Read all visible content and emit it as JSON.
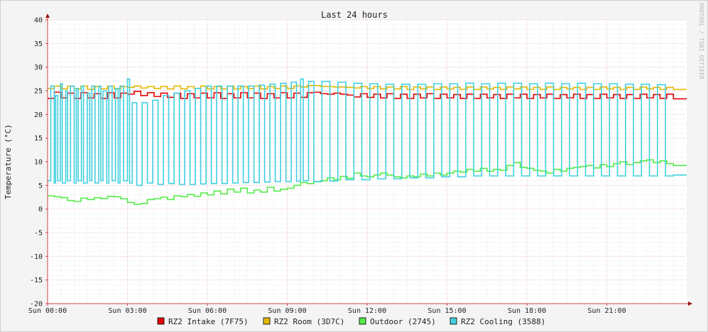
{
  "chart_data": {
    "type": "line",
    "title": "Last 24 hours",
    "ylabel": "Temperature (°C)",
    "watermark": "RRDTOOL / TOBI OETIKER",
    "ylim": [
      -20,
      40
    ],
    "yticks": [
      40,
      35,
      30,
      25,
      20,
      15,
      10,
      5,
      0,
      -5,
      -10,
      -15,
      -20
    ],
    "xlim_hours": [
      0,
      24
    ],
    "xticks": [
      {
        "hour": 0,
        "label": "Sun 00:00"
      },
      {
        "hour": 3,
        "label": "Sun 03:00"
      },
      {
        "hour": 6,
        "label": "Sun 06:00"
      },
      {
        "hour": 9,
        "label": "Sun 09:00"
      },
      {
        "hour": 12,
        "label": "Sun 12:00"
      },
      {
        "hour": 15,
        "label": "Sun 15:00"
      },
      {
        "hour": 18,
        "label": "Sun 18:00"
      },
      {
        "hour": 21,
        "label": "Sun 21:00"
      }
    ],
    "grid": true,
    "legend_position": "bottom",
    "series": [
      {
        "name": "RZ2 Intake (7F75)",
        "color": "#e60000",
        "x": [
          0.0,
          0.25,
          0.5,
          0.75,
          1.0,
          1.25,
          1.5,
          1.75,
          2.0,
          2.25,
          2.5,
          2.75,
          3.0,
          3.25,
          3.5,
          3.75,
          4.0,
          4.25,
          4.5,
          4.75,
          5.0,
          5.25,
          5.5,
          5.75,
          6.0,
          6.25,
          6.5,
          6.75,
          7.0,
          7.25,
          7.5,
          7.75,
          8.0,
          8.25,
          8.5,
          8.75,
          9.0,
          9.25,
          9.5,
          9.75,
          10.0,
          10.25,
          10.5,
          10.75,
          11.0,
          11.25,
          11.5,
          11.75,
          12.0,
          12.25,
          12.5,
          12.75,
          13.0,
          13.25,
          13.5,
          13.75,
          14.0,
          14.25,
          14.5,
          14.75,
          15.0,
          15.25,
          15.5,
          15.75,
          16.0,
          16.25,
          16.5,
          16.75,
          17.0,
          17.25,
          17.5,
          17.75,
          18.0,
          18.25,
          18.5,
          18.75,
          19.0,
          19.25,
          19.5,
          19.75,
          20.0,
          20.25,
          20.5,
          20.75,
          21.0,
          21.25,
          21.5,
          21.75,
          22.0,
          22.25,
          22.5,
          22.75,
          23.0,
          23.25,
          23.5
        ],
        "y": [
          23.4,
          24.7,
          23.5,
          24.5,
          23.4,
          24.6,
          23.5,
          24.4,
          23.4,
          24.6,
          23.5,
          24.5,
          24.3,
          24.9,
          24.0,
          24.6,
          23.8,
          24.5,
          23.6,
          24.5,
          23.4,
          24.4,
          23.5,
          24.5,
          23.5,
          24.6,
          23.4,
          24.4,
          23.5,
          24.6,
          23.5,
          24.5,
          23.4,
          24.4,
          23.5,
          24.6,
          23.5,
          24.5,
          23.6,
          24.6,
          24.7,
          24.4,
          24.3,
          24.5,
          24.3,
          24.1,
          23.7,
          24.4,
          23.6,
          24.3,
          23.5,
          24.4,
          23.4,
          24.3,
          23.4,
          24.3,
          23.5,
          24.4,
          23.4,
          24.3,
          23.5,
          24.2,
          23.4,
          24.3,
          23.4,
          24.3,
          23.5,
          24.2,
          23.4,
          24.3,
          23.5,
          24.3,
          23.4,
          24.2,
          23.5,
          24.3,
          23.4,
          24.2,
          23.5,
          24.3,
          23.4,
          24.2,
          23.4,
          24.3,
          23.5,
          24.2,
          23.4,
          24.2,
          23.4,
          24.3,
          23.5,
          24.2,
          23.4,
          24.3,
          23.3
        ]
      },
      {
        "name": "RZ2 Room (3D7C)",
        "color": "#e6b800",
        "x": [
          0.0,
          0.25,
          0.5,
          0.75,
          1.0,
          1.25,
          1.5,
          1.75,
          2.0,
          2.25,
          2.5,
          2.75,
          3.0,
          3.25,
          3.5,
          3.75,
          4.0,
          4.25,
          4.5,
          4.75,
          5.0,
          5.25,
          5.5,
          5.75,
          6.0,
          6.25,
          6.5,
          6.75,
          7.0,
          7.25,
          7.5,
          7.75,
          8.0,
          8.25,
          8.5,
          8.75,
          9.0,
          9.25,
          9.5,
          9.75,
          10.0,
          10.25,
          10.5,
          10.75,
          11.0,
          11.25,
          11.5,
          11.75,
          12.0,
          12.25,
          12.5,
          12.75,
          13.0,
          13.25,
          13.5,
          13.75,
          14.0,
          14.25,
          14.5,
          14.75,
          15.0,
          15.25,
          15.5,
          15.75,
          16.0,
          16.25,
          16.5,
          16.75,
          17.0,
          17.25,
          17.5,
          17.75,
          18.0,
          18.25,
          18.5,
          18.75,
          19.0,
          19.25,
          19.5,
          19.75,
          20.0,
          20.25,
          20.5,
          20.75,
          21.0,
          21.25,
          21.5,
          21.75,
          22.0,
          22.25,
          22.5,
          22.75,
          23.0,
          23.25,
          23.5
        ],
        "y": [
          25.5,
          26.0,
          25.4,
          26.0,
          25.4,
          26.0,
          25.3,
          25.9,
          25.4,
          26.0,
          25.4,
          25.9,
          25.7,
          26.0,
          25.6,
          25.9,
          25.5,
          25.9,
          25.4,
          26.0,
          25.4,
          25.9,
          25.5,
          26.0,
          25.4,
          25.9,
          25.4,
          26.0,
          25.4,
          25.9,
          25.5,
          26.0,
          25.4,
          25.9,
          25.5,
          26.0,
          25.5,
          26.0,
          25.8,
          26.1,
          26.1,
          25.9,
          25.9,
          25.8,
          25.8,
          25.7,
          25.6,
          25.9,
          25.5,
          25.9,
          25.4,
          25.8,
          25.4,
          25.9,
          25.3,
          25.8,
          25.4,
          25.8,
          25.3,
          25.8,
          25.4,
          25.7,
          25.3,
          25.8,
          25.3,
          25.8,
          25.4,
          25.7,
          25.3,
          25.8,
          25.4,
          25.8,
          25.3,
          25.7,
          25.3,
          25.8,
          25.3,
          25.7,
          25.4,
          25.7,
          25.3,
          25.7,
          25.3,
          25.8,
          25.4,
          25.7,
          25.3,
          25.7,
          25.3,
          25.8,
          25.4,
          25.7,
          25.3,
          25.7,
          25.3
        ]
      },
      {
        "name": "Outdoor (2745)",
        "color": "#54ec48",
        "x": [
          0.0,
          0.25,
          0.5,
          0.75,
          1.0,
          1.25,
          1.5,
          1.75,
          2.0,
          2.25,
          2.5,
          2.75,
          3.0,
          3.25,
          3.5,
          3.75,
          4.0,
          4.25,
          4.5,
          4.75,
          5.0,
          5.25,
          5.5,
          5.75,
          6.0,
          6.25,
          6.5,
          6.75,
          7.0,
          7.25,
          7.5,
          7.75,
          8.0,
          8.25,
          8.5,
          8.75,
          9.0,
          9.25,
          9.5,
          9.75,
          10.0,
          10.25,
          10.5,
          10.75,
          11.0,
          11.25,
          11.5,
          11.75,
          12.0,
          12.25,
          12.5,
          12.75,
          13.0,
          13.25,
          13.5,
          13.75,
          14.0,
          14.25,
          14.5,
          14.75,
          15.0,
          15.25,
          15.5,
          15.75,
          16.0,
          16.25,
          16.5,
          16.75,
          17.0,
          17.25,
          17.5,
          17.75,
          18.0,
          18.25,
          18.5,
          18.75,
          19.0,
          19.25,
          19.5,
          19.75,
          20.0,
          20.25,
          20.5,
          20.75,
          21.0,
          21.25,
          21.5,
          21.75,
          22.0,
          22.25,
          22.5,
          22.75,
          23.0,
          23.25,
          23.5
        ],
        "y": [
          2.8,
          2.6,
          2.4,
          1.8,
          1.6,
          2.3,
          2.0,
          2.4,
          2.2,
          2.7,
          2.6,
          2.2,
          1.4,
          1.0,
          1.2,
          2.0,
          2.2,
          2.5,
          2.0,
          2.8,
          2.6,
          3.1,
          2.7,
          3.4,
          3.0,
          3.8,
          3.2,
          4.2,
          3.6,
          4.4,
          3.4,
          4.0,
          3.6,
          4.6,
          3.8,
          4.2,
          4.4,
          5.0,
          5.6,
          5.4,
          5.8,
          6.0,
          6.6,
          6.2,
          6.9,
          6.5,
          7.6,
          7.0,
          6.8,
          7.2,
          7.6,
          7.2,
          6.8,
          6.6,
          7.0,
          6.8,
          7.4,
          7.0,
          7.6,
          7.2,
          7.6,
          8.0,
          7.8,
          8.4,
          8.0,
          8.6,
          8.0,
          8.4,
          8.2,
          9.2,
          9.8,
          8.8,
          8.6,
          8.2,
          8.0,
          7.6,
          8.4,
          8.0,
          8.6,
          8.8,
          9.0,
          9.2,
          8.7,
          9.4,
          9.0,
          9.6,
          10.0,
          9.4,
          9.8,
          10.2,
          10.4,
          9.8,
          10.2,
          9.6,
          9.2
        ]
      },
      {
        "name": "RZ2 Cooling (3588)",
        "color": "#40d0e0",
        "x": [
          0.0,
          0.12,
          0.25,
          0.3,
          0.38,
          0.48,
          0.55,
          0.68,
          0.75,
          0.86,
          1.0,
          1.08,
          1.15,
          1.27,
          1.35,
          1.49,
          1.58,
          1.66,
          1.78,
          1.92,
          2.0,
          2.08,
          2.22,
          2.3,
          2.42,
          2.55,
          2.65,
          2.72,
          2.85,
          3.0,
          3.08,
          3.18,
          3.35,
          3.55,
          3.75,
          3.95,
          4.15,
          4.35,
          4.55,
          4.75,
          4.95,
          5.15,
          5.35,
          5.55,
          5.75,
          5.95,
          6.15,
          6.35,
          6.55,
          6.75,
          6.95,
          7.15,
          7.35,
          7.55,
          7.75,
          7.95,
          8.15,
          8.35,
          8.55,
          8.75,
          8.95,
          9.15,
          9.35,
          9.5,
          9.6,
          9.8,
          10.0,
          10.3,
          10.6,
          10.9,
          11.2,
          11.5,
          11.8,
          12.1,
          12.4,
          12.7,
          13.0,
          13.3,
          13.6,
          13.9,
          14.2,
          14.5,
          14.8,
          15.1,
          15.4,
          15.7,
          16.0,
          16.3,
          16.6,
          16.9,
          17.2,
          17.5,
          17.8,
          18.1,
          18.4,
          18.7,
          19.0,
          19.3,
          19.6,
          19.9,
          20.2,
          20.5,
          20.8,
          21.1,
          21.4,
          21.7,
          22.0,
          22.3,
          22.6,
          22.9,
          23.2,
          23.5
        ],
        "y": [
          6.0,
          26.0,
          5.5,
          24.0,
          6.0,
          26.5,
          5.5,
          25.0,
          6.0,
          26.0,
          5.5,
          25.5,
          6.0,
          26.0,
          5.5,
          24.5,
          6.0,
          26.0,
          5.5,
          26.0,
          6.0,
          25.0,
          5.5,
          26.0,
          6.0,
          25.5,
          5.5,
          26.0,
          6.0,
          27.5,
          5.5,
          22.5,
          5.0,
          22.5,
          5.5,
          23.0,
          5.2,
          24.0,
          5.4,
          24.5,
          5.2,
          25.0,
          5.2,
          25.5,
          5.3,
          26.0,
          5.4,
          26.0,
          5.4,
          26.0,
          5.5,
          26.0,
          5.6,
          26.0,
          5.6,
          26.2,
          5.7,
          26.4,
          5.8,
          26.6,
          5.8,
          26.8,
          5.9,
          27.5,
          6.0,
          27.0,
          5.8,
          27.0,
          5.9,
          26.8,
          6.2,
          26.6,
          6.2,
          26.5,
          6.4,
          26.4,
          6.4,
          26.4,
          6.6,
          26.4,
          6.6,
          26.5,
          6.8,
          26.5,
          6.8,
          26.6,
          7.0,
          26.5,
          7.0,
          26.6,
          7.0,
          26.6,
          7.0,
          26.5,
          7.0,
          26.6,
          7.0,
          26.5,
          7.0,
          26.6,
          7.0,
          26.5,
          7.0,
          26.5,
          7.0,
          26.4,
          7.0,
          26.4,
          7.0,
          26.3,
          7.0,
          7.2
        ]
      }
    ]
  }
}
